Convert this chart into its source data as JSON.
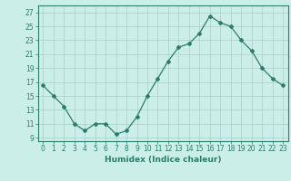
{
  "x": [
    0,
    1,
    2,
    3,
    4,
    5,
    6,
    7,
    8,
    9,
    10,
    11,
    12,
    13,
    14,
    15,
    16,
    17,
    18,
    19,
    20,
    21,
    22,
    23
  ],
  "y": [
    16.5,
    15.0,
    13.5,
    11.0,
    10.0,
    11.0,
    11.0,
    9.5,
    10.0,
    12.0,
    15.0,
    17.5,
    20.0,
    22.0,
    22.5,
    24.0,
    26.5,
    25.5,
    25.0,
    23.0,
    21.5,
    19.0,
    17.5,
    16.5
  ],
  "line_color": "#2d7d6e",
  "marker": "D",
  "marker_size": 2,
  "bg_color": "#cceee8",
  "grid_color": "#aacccc",
  "xlabel": "Humidex (Indice chaleur)",
  "ylabel_ticks": [
    9,
    11,
    13,
    15,
    17,
    19,
    21,
    23,
    25,
    27
  ],
  "xlim": [
    -0.5,
    23.5
  ],
  "ylim": [
    8.5,
    28
  ],
  "xticks": [
    0,
    1,
    2,
    3,
    4,
    5,
    6,
    7,
    8,
    9,
    10,
    11,
    12,
    13,
    14,
    15,
    16,
    17,
    18,
    19,
    20,
    21,
    22,
    23
  ],
  "axis_color": "#2d7d6e",
  "tick_color": "#2d7d6e",
  "label_color": "#2d7d6e",
  "tick_fontsize": 5.5,
  "xlabel_fontsize": 6.5
}
